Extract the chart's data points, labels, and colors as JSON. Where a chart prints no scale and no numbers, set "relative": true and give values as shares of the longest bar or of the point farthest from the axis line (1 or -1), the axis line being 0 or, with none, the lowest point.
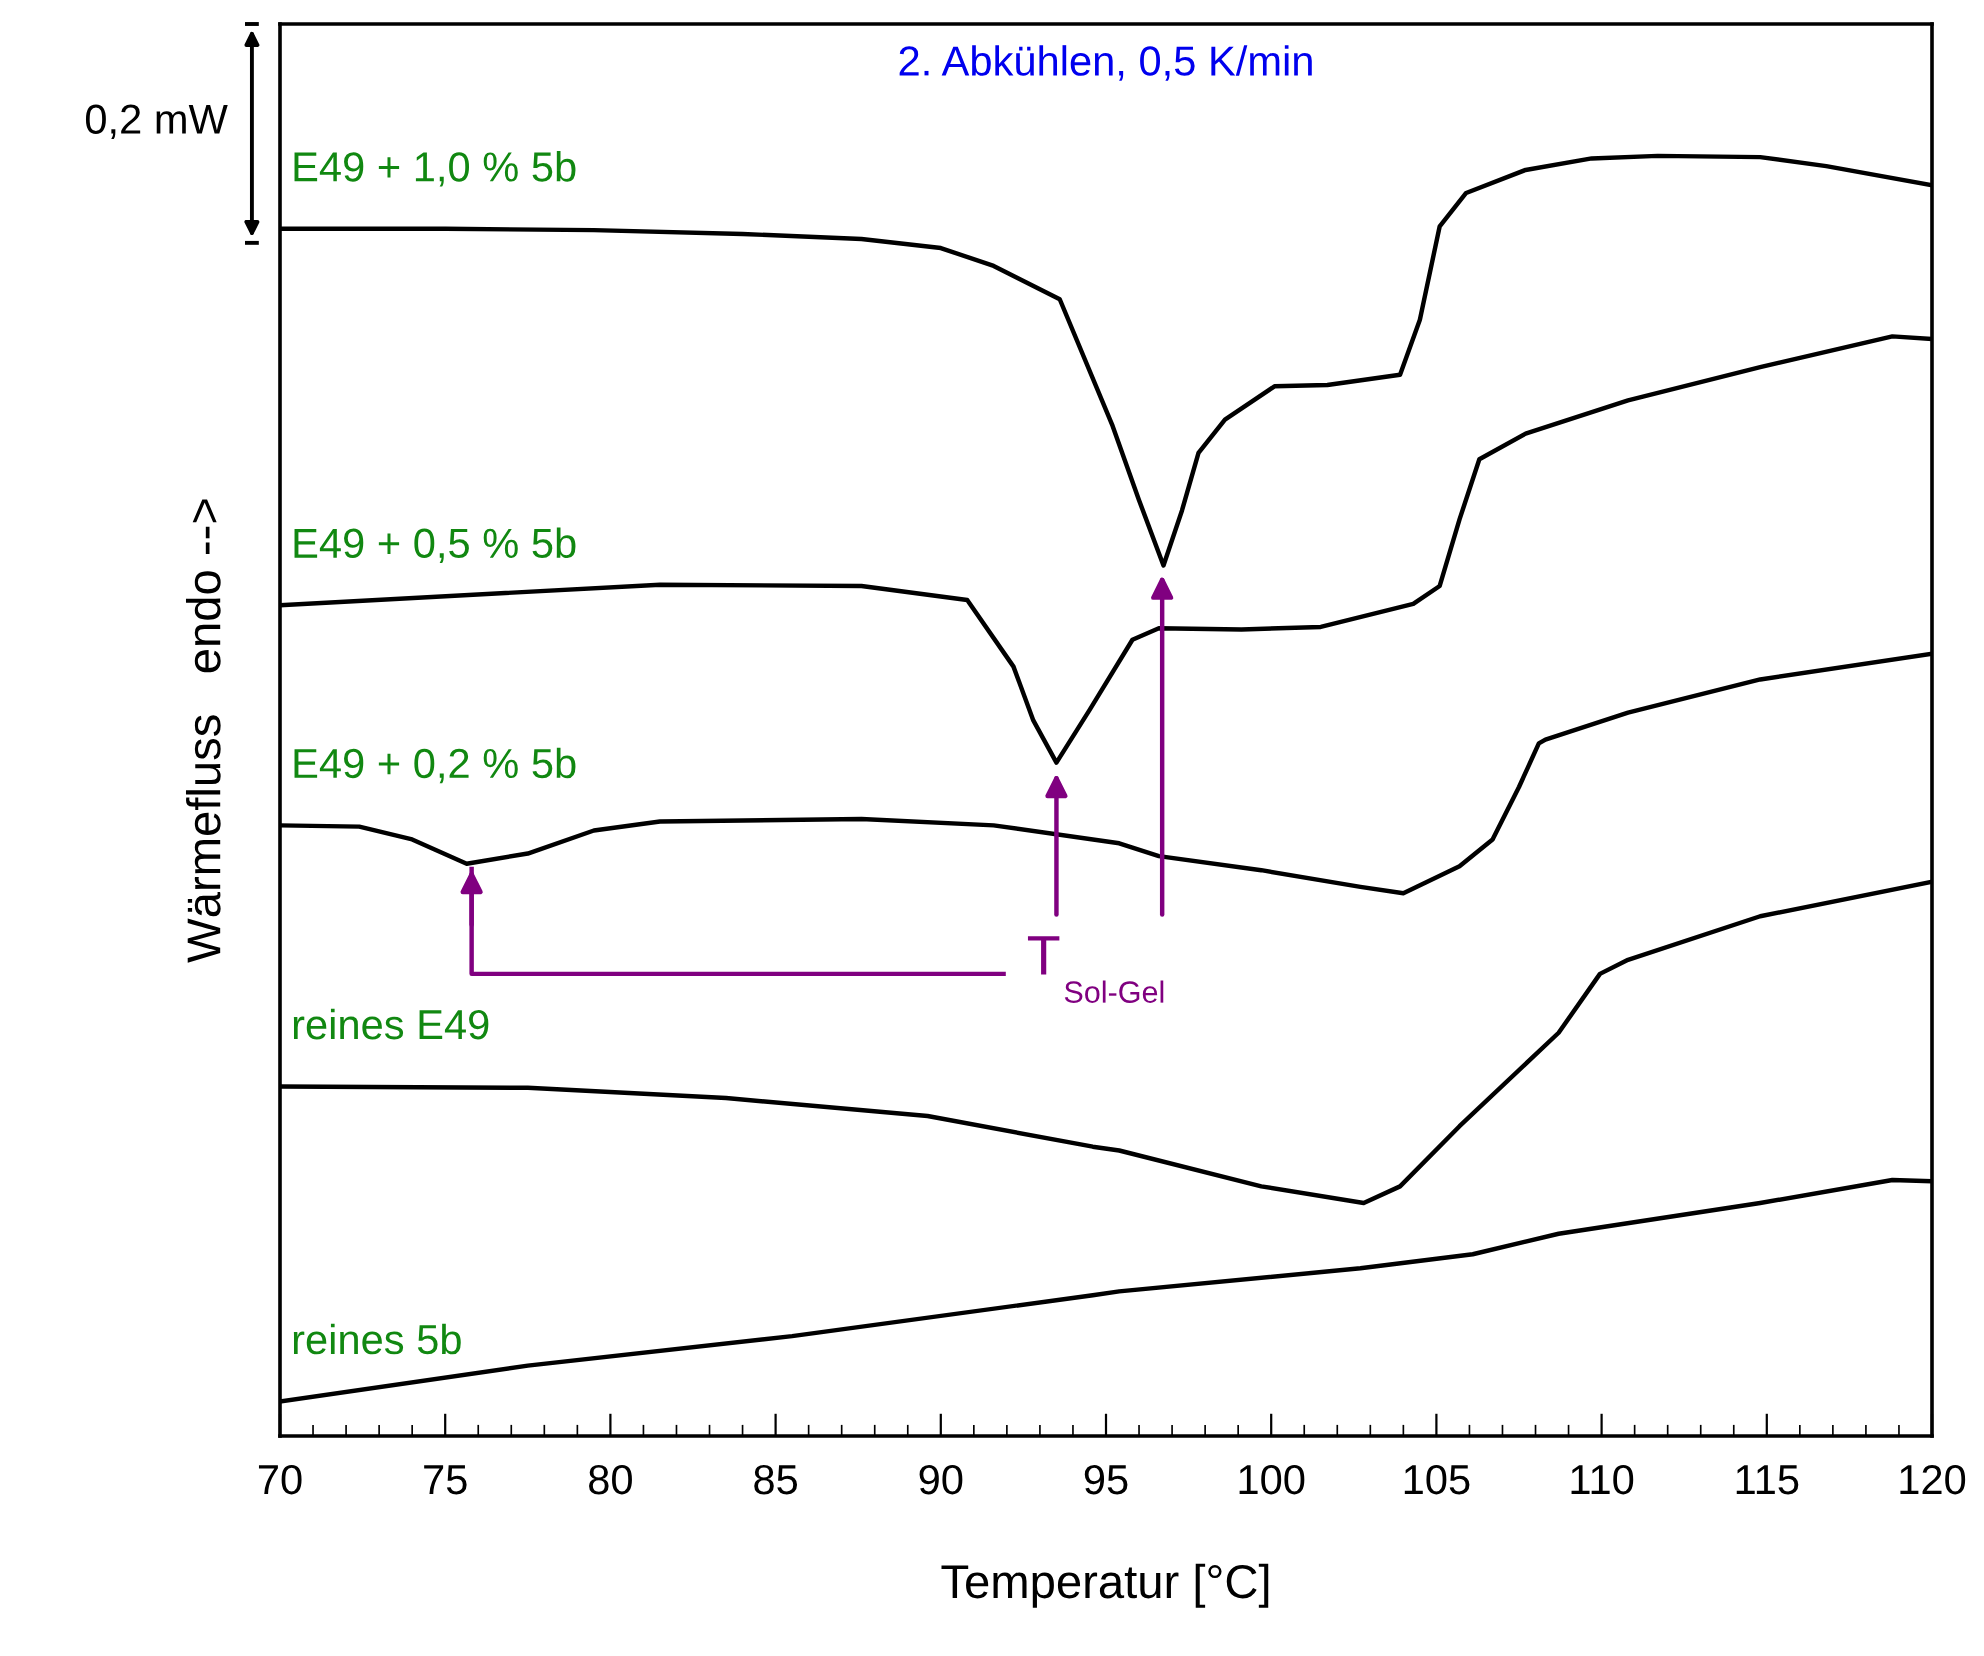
{
  "chart_data": {
    "type": "line",
    "relative": true,
    "title": "2. Abkühlen, 0,5 K/min",
    "xlabel": "Temperatur [°C]",
    "ylabel": "Wärmefluss   endo -->",
    "xlim": [
      70,
      120
    ],
    "xticks": [
      70,
      75,
      80,
      85,
      90,
      95,
      100,
      105,
      110,
      115,
      120
    ],
    "grid": false,
    "legend": false,
    "annotations": [
      "0,2 mW",
      "T$_{Sol-Gel}$"
    ],
    "series": [
      {
        "name": "E49 + 1,0 % 5b",
        "color": "#000000",
        "x": [
          70,
          75,
          79.5,
          84,
          87.6,
          90,
          91.6,
          93.6,
          95.2,
          96.0,
          96.74,
          97.3,
          97.8,
          98.6,
          100.1,
          101.7,
          103.9,
          104.5,
          105.1,
          105.9,
          107.7,
          109.7,
          111.7,
          114.8,
          116.8,
          120
        ],
        "values": [
          0.943,
          0.943,
          0.942,
          0.939,
          0.935,
          0.928,
          0.914,
          0.888,
          0.789,
          0.731,
          0.68,
          0.723,
          0.768,
          0.794,
          0.82,
          0.821,
          0.829,
          0.872,
          0.945,
          0.971,
          0.989,
          0.998,
          1.0,
          0.999,
          0.992,
          0.977
        ]
      },
      {
        "name": "E49 + 0,5 % 5b",
        "color": "#000000",
        "x": [
          70,
          81.5,
          87.6,
          90.8,
          92.2,
          92.8,
          93.5,
          94.5,
          95.8,
          96.6,
          99.1,
          101.5,
          104.3,
          105.1,
          105.7,
          106.3,
          107.7,
          110.8,
          114.8,
          118.8,
          120
        ],
        "values": [
          0.649,
          0.665,
          0.664,
          0.653,
          0.601,
          0.559,
          0.526,
          0.567,
          0.622,
          0.631,
          0.63,
          0.632,
          0.65,
          0.664,
          0.716,
          0.763,
          0.783,
          0.809,
          0.835,
          0.859,
          0.857
        ]
      },
      {
        "name": "E49 + 0,2 % 5b",
        "color": "#000000",
        "x": [
          70,
          72.4,
          74,
          75.65,
          77.5,
          79.5,
          81.5,
          87.6,
          91.6,
          95.4,
          96.6,
          99.7,
          102.7,
          104.0,
          105.7,
          106.7,
          107.5,
          108.1,
          108.3,
          110.8,
          114.8,
          120
        ],
        "values": [
          0.477,
          0.476,
          0.466,
          0.447,
          0.455,
          0.473,
          0.48,
          0.482,
          0.477,
          0.463,
          0.453,
          0.442,
          0.429,
          0.424,
          0.445,
          0.466,
          0.507,
          0.541,
          0.544,
          0.565,
          0.591,
          0.611
        ]
      },
      {
        "name": "reines E49",
        "color": "#000000",
        "x": [
          70,
          77.5,
          83.5,
          89.6,
          94.6,
          95.4,
          99.7,
          102.8,
          103.9,
          105.7,
          108.7,
          109.95,
          110.8,
          114.8,
          120
        ],
        "values": [
          0.273,
          0.272,
          0.264,
          0.25,
          0.226,
          0.223,
          0.195,
          0.182,
          0.195,
          0.242,
          0.315,
          0.361,
          0.372,
          0.406,
          0.433
        ]
      },
      {
        "name": "reines 5b",
        "color": "#000000",
        "x": [
          70,
          77.5,
          85.5,
          94.6,
          95.4,
          102.7,
          106.1,
          108.7,
          114.8,
          118.8,
          120
        ],
        "values": [
          0.027,
          0.055,
          0.078,
          0.11,
          0.113,
          0.131,
          0.142,
          0.158,
          0.182,
          0.2,
          0.199
        ]
      }
    ]
  }
}
